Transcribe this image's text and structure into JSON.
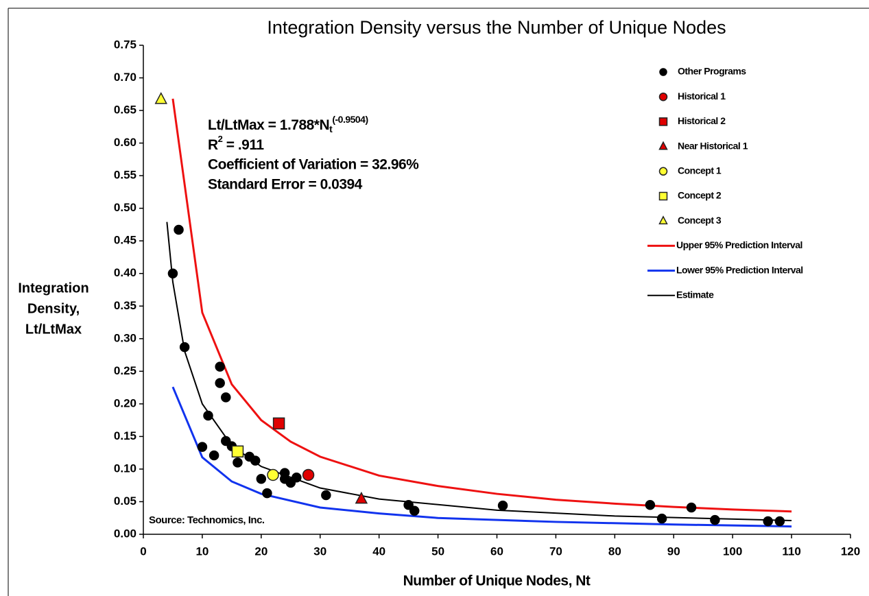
{
  "chart_data": {
    "type": "scatter",
    "title": "Integration Density versus the Number of Unique Nodes",
    "xlabel": "Number of Unique Nodes, Nt",
    "ylabel": [
      "Integration",
      "Density,",
      "Lt/LtMax"
    ],
    "xlim": [
      0,
      120
    ],
    "ylim": [
      0,
      0.75
    ],
    "xticks": [
      0,
      10,
      20,
      30,
      40,
      50,
      60,
      70,
      80,
      90,
      100,
      110,
      120
    ],
    "yticks": [
      {
        "value": 0,
        "label": "0.00"
      },
      {
        "value": 0.05,
        "label": "0.05"
      },
      {
        "value": 0.1,
        "label": "0.10"
      },
      {
        "value": 0.15,
        "label": "0.15"
      },
      {
        "value": 0.2,
        "label": "0.20"
      },
      {
        "value": 0.25,
        "label": "0.25"
      },
      {
        "value": 0.3,
        "label": "0.30"
      },
      {
        "value": 0.35,
        "label": "0.35"
      },
      {
        "value": 0.4,
        "label": "0.40"
      },
      {
        "value": 0.45,
        "label": "0.45"
      },
      {
        "value": 0.5,
        "label": "0.50"
      },
      {
        "value": 0.55,
        "label": "0.55"
      },
      {
        "value": 0.6,
        "label": "0.60"
      },
      {
        "value": 0.65,
        "label": "0.65"
      },
      {
        "value": 0.7,
        "label": "0.70"
      },
      {
        "value": 0.75,
        "label": "0.75"
      }
    ],
    "annotations": {
      "equation": {
        "text": "Lt/LtMax = 1.788*N",
        "subscript": "t",
        "superscript": "(-0.9504)"
      },
      "r2": {
        "text": "R",
        "superscript": "2",
        "rest": " = .911"
      },
      "cv": "Coefficient of Variation = 32.96%",
      "se": "Standard Error = 0.0394",
      "source": "Source: Technomics, Inc."
    },
    "series": [
      {
        "name": "Other Programs",
        "kind": "scatter",
        "marker": "circle",
        "color": "#000000",
        "x": [
          6,
          5,
          7,
          13,
          13,
          14,
          11,
          10,
          12,
          14,
          15,
          16,
          18,
          19,
          20,
          21,
          24,
          24,
          25,
          26,
          31,
          45,
          46,
          61,
          86,
          88,
          93,
          97,
          106,
          108
        ],
        "values": [
          0.467,
          0.4,
          0.287,
          0.257,
          0.232,
          0.21,
          0.182,
          0.134,
          0.121,
          0.143,
          0.135,
          0.11,
          0.119,
          0.113,
          0.085,
          0.063,
          0.094,
          0.085,
          0.079,
          0.087,
          0.06,
          0.045,
          0.036,
          0.044,
          0.045,
          0.024,
          0.041,
          0.022,
          0.02,
          0.02
        ]
      },
      {
        "name": "Historical 1",
        "kind": "scatter",
        "marker": "circle",
        "color": "#e00000",
        "x": [
          28
        ],
        "values": [
          0.091
        ]
      },
      {
        "name": "Historical 2",
        "kind": "scatter",
        "marker": "square",
        "color": "#e00000",
        "x": [
          23
        ],
        "values": [
          0.17
        ]
      },
      {
        "name": "Near Historical 1",
        "kind": "scatter",
        "marker": "triangle",
        "color": "#e00000",
        "x": [
          37
        ],
        "values": [
          0.054
        ]
      },
      {
        "name": "Concept 1",
        "kind": "scatter",
        "marker": "circle",
        "color": "#ffff33",
        "x": [
          22
        ],
        "values": [
          0.091
        ]
      },
      {
        "name": "Concept 2",
        "kind": "scatter",
        "marker": "square",
        "color": "#ffff33",
        "x": [
          16
        ],
        "values": [
          0.127
        ]
      },
      {
        "name": "Concept 3",
        "kind": "scatter",
        "marker": "triangle",
        "color": "#ffff33",
        "x": [
          3
        ],
        "values": [
          0.667
        ]
      },
      {
        "name": "Upper 95% Prediction Interval",
        "kind": "line",
        "color": "#ee1111",
        "width": 3,
        "x": [
          5,
          10,
          15,
          20,
          25,
          30,
          40,
          50,
          60,
          70,
          80,
          90,
          100,
          110
        ],
        "values": [
          0.668,
          0.34,
          0.23,
          0.175,
          0.142,
          0.119,
          0.09,
          0.074,
          0.062,
          0.053,
          0.047,
          0.042,
          0.038,
          0.035
        ]
      },
      {
        "name": "Lower 95% Prediction Interval",
        "kind": "line",
        "color": "#1133ee",
        "width": 3,
        "x": [
          5,
          10,
          15,
          20,
          30,
          40,
          50,
          70,
          90,
          110
        ],
        "values": [
          0.226,
          0.118,
          0.081,
          0.062,
          0.041,
          0.032,
          0.025,
          0.019,
          0.015,
          0.012
        ]
      },
      {
        "name": "Estimate",
        "kind": "line",
        "color": "#000000",
        "width": 2,
        "x": [
          4,
          5,
          7,
          10,
          15,
          20,
          30,
          40,
          60,
          80,
          110
        ],
        "values": [
          0.479,
          0.387,
          0.281,
          0.2,
          0.136,
          0.104,
          0.071,
          0.054,
          0.037,
          0.028,
          0.021
        ]
      }
    ]
  }
}
